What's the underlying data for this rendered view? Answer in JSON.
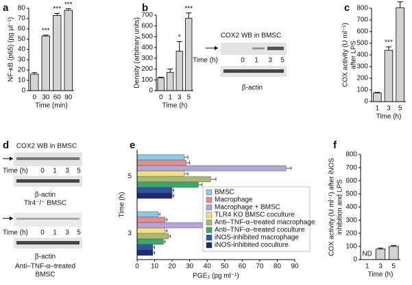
{
  "chart_data": [
    {
      "type": "bar",
      "panel": "a",
      "ylabel": [
        "NF-κB (p65) (pg μl⁻¹)"
      ],
      "xlabel": "Time (min)",
      "categories": [
        "0",
        "30",
        "60",
        "90"
      ],
      "values": [
        16,
        53,
        73,
        78
      ],
      "errors": [
        1.5,
        1,
        2,
        1.5
      ],
      "stars": [
        null,
        "***",
        "***",
        "***"
      ],
      "color": "#d3d3d3",
      "ylim": [
        0,
        80
      ],
      "yticks": [
        0,
        10,
        20,
        30,
        40,
        50,
        60,
        70,
        80
      ]
    },
    {
      "type": "bar",
      "panel": "b",
      "ylabel": [
        "Density (arbitrary units)"
      ],
      "xlabel": "Time (h)",
      "categories": [
        "0",
        "1",
        "3",
        "5"
      ],
      "values": [
        120,
        170,
        365,
        670
      ],
      "errors": [
        5,
        30,
        90,
        50
      ],
      "stars": [
        null,
        null,
        "*",
        "***"
      ],
      "color": "#d3d3d3",
      "ylim": [
        0,
        700
      ],
      "yticks": [
        0,
        100,
        200,
        300,
        400,
        500,
        600,
        700
      ]
    },
    {
      "type": "bar",
      "panel": "c",
      "ylabel": [
        "COX activity (U ml⁻¹)",
        "after LPS"
      ],
      "xlabel": "Time (h)",
      "categories": [
        "1",
        "3",
        "5"
      ],
      "values": [
        75,
        440,
        805
      ],
      "errors": [
        5,
        30,
        50
      ],
      "stars": [
        null,
        "***",
        "***"
      ],
      "color": "#d3d3d3",
      "ylim": [
        0,
        800
      ],
      "yticks": [
        0,
        100,
        200,
        300,
        400,
        500,
        600,
        700,
        800
      ]
    },
    {
      "type": "hbar",
      "panel": "e",
      "ylabel": "Time (h)",
      "xlabel": "PGE₂ (pg ml⁻¹)",
      "categories": [
        "5",
        "3"
      ],
      "xlim": [
        0,
        90
      ],
      "xticks": [
        0,
        10,
        20,
        30,
        40,
        50,
        60,
        70,
        80,
        90
      ],
      "series": [
        {
          "name": "BMSC",
          "color": "#86cbe8",
          "values": [
            27,
            12
          ],
          "errors": [
            2,
            1
          ]
        },
        {
          "name": "Macrophage",
          "color": "#e58c8c",
          "values": [
            28,
            16
          ],
          "errors": [
            2,
            1
          ]
        },
        {
          "name": "Macrophage + BMSC",
          "color": "#b4a4d8",
          "values": [
            85,
            43
          ],
          "errors": [
            3,
            2
          ]
        },
        {
          "name": "TLR4 KO BMSC coculture",
          "color": "#eee07e",
          "values": [
            27,
            16
          ],
          "errors": [
            2,
            1
          ]
        },
        {
          "name": "Anti–TNF-α–treated macrophage",
          "color": "#a9b872",
          "values": [
            42,
            18
          ],
          "errors": [
            3,
            1
          ]
        },
        {
          "name": "Anti–TNF-α–treated coculture",
          "color": "#3aa86a",
          "values": [
            35,
            15
          ],
          "errors": [
            2,
            1
          ]
        },
        {
          "name": "iNOS-inhibited macrophage",
          "color": "#3452a2",
          "values": [
            20,
            9
          ],
          "errors": [
            1,
            1
          ]
        },
        {
          "name": "iNOS-inhibited coculture",
          "color": "#1f2870",
          "values": [
            20,
            9
          ],
          "errors": [
            1,
            1
          ]
        }
      ]
    },
    {
      "type": "bar",
      "panel": "f",
      "ylabel": [
        "COX activity (U ml⁻¹) after iNOS",
        "inhibition and LPS"
      ],
      "xlabel": "Time (h)",
      "categories": [
        "1",
        "3",
        "5"
      ],
      "values": [
        null,
        80,
        100
      ],
      "value_labels": [
        "ND",
        null,
        null
      ],
      "errors": [
        null,
        8,
        8
      ],
      "color": "#d3d3d3",
      "ylim": [
        0,
        800
      ],
      "yticks": [
        0,
        100,
        200,
        300,
        400,
        500,
        600,
        700,
        800
      ]
    }
  ],
  "blot_b": {
    "title": "COX2 WB in BMSC",
    "time_label": "Time (h)",
    "lanes": [
      "0",
      "1",
      "3",
      "5"
    ],
    "loading": "β-actin"
  },
  "panel_d": {
    "panel": "d",
    "title": "COX2 WB in BMSC",
    "blots": [
      {
        "time_label": "Time (h)",
        "lanes": [
          "0",
          "1",
          "3",
          "5"
        ],
        "loading": "β-actin",
        "caption": [
          "Tlr4⁻/⁻ BMSC"
        ]
      },
      {
        "time_label": "Time (h)",
        "lanes": [
          "0",
          "1",
          "3",
          "5"
        ],
        "loading": "β-actin",
        "caption": [
          "Anti–TNF-α–treated",
          "BMSC"
        ]
      }
    ]
  }
}
